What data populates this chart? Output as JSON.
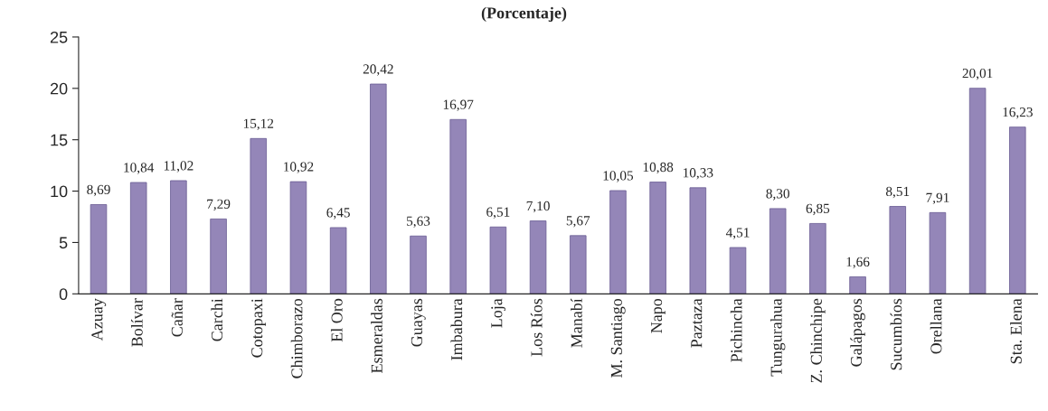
{
  "chart_data": {
    "type": "bar",
    "title": "(Porcentaje)",
    "categories": [
      "Azuay",
      "Bolívar",
      "Cañar",
      "Carchi",
      "Cotopaxi",
      "Chimborazo",
      "El Oro",
      "Esmeraldas",
      "Guayas",
      "Imbabura",
      "Loja",
      "Los Ríos",
      "Manabí",
      "M. Santiago",
      "Napo",
      "Paztaza",
      "Pichincha",
      "Tungurahua",
      "Z. Chinchipe",
      "Galápagos",
      "Sucumbíos",
      "Orellana",
      null,
      "Sta. Elena"
    ],
    "values": [
      8.69,
      10.84,
      11.02,
      7.29,
      15.12,
      10.92,
      6.45,
      20.42,
      5.63,
      16.97,
      6.51,
      7.1,
      5.67,
      10.05,
      10.88,
      10.33,
      4.51,
      8.3,
      6.85,
      1.66,
      8.51,
      7.91,
      20.01,
      16.23
    ],
    "value_labels": [
      "8,69",
      "10,84",
      "11,02",
      "7,29",
      "15,12",
      "10,92",
      "6,45",
      "20,42",
      "5,63",
      "16,97",
      "6,51",
      "7,10",
      "5,67",
      "10,05",
      "10,88",
      "10,33",
      "4,51",
      "8,30",
      "6,85",
      "1,66",
      "8,51",
      "7,91",
      "20,01",
      "16,23"
    ],
    "color": "#9486b8",
    "ylim": [
      0,
      25
    ],
    "yticks": [
      0,
      5,
      10,
      15,
      20,
      25
    ],
    "grid": false,
    "legend": false
  }
}
